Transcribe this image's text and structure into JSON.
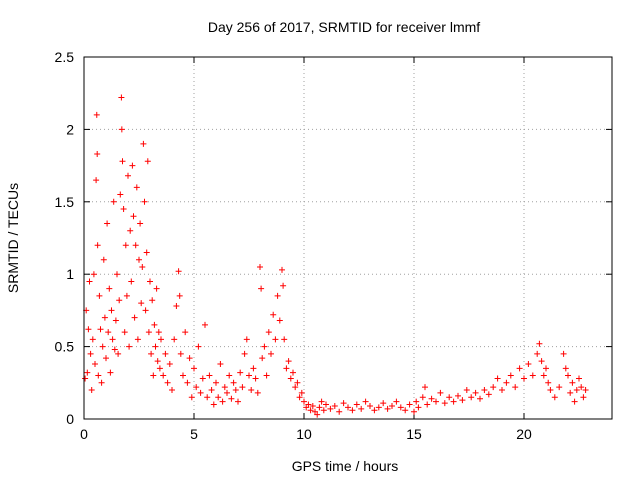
{
  "chart_data": {
    "type": "scatter",
    "title": "Day 256 of 2017, SRMTID for receiver lmmf",
    "xlabel": "GPS time / hours",
    "ylabel": "SRMTID / TECUs",
    "xlim": [
      0,
      24
    ],
    "ylim": [
      0,
      2.5
    ],
    "xticks": [
      0,
      5,
      10,
      15,
      20
    ],
    "xtick_labels": [
      "0",
      "5",
      "10",
      "15",
      "20"
    ],
    "yticks": [
      0,
      0.5,
      1,
      1.5,
      2,
      2.5
    ],
    "ytick_labels": [
      "0",
      "0.5",
      "1",
      "1.5",
      "2",
      "2.5"
    ],
    "grid": true,
    "marker": "+",
    "colors": {
      "series": "#ff0000",
      "grid": "#a0a0a0",
      "frame": "#000000"
    },
    "series": [
      {
        "name": "SRMTID",
        "points": [
          [
            0.05,
            0.28
          ],
          [
            0.1,
            0.75
          ],
          [
            0.15,
            0.32
          ],
          [
            0.2,
            0.62
          ],
          [
            0.25,
            0.95
          ],
          [
            0.3,
            0.45
          ],
          [
            0.35,
            0.2
          ],
          [
            0.4,
            0.55
          ],
          [
            0.45,
            1.0
          ],
          [
            0.5,
            0.38
          ],
          [
            0.55,
            1.65
          ],
          [
            0.58,
            2.1
          ],
          [
            0.6,
            1.83
          ],
          [
            0.62,
            1.2
          ],
          [
            0.65,
            0.3
          ],
          [
            0.7,
            0.85
          ],
          [
            0.75,
            0.62
          ],
          [
            0.8,
            0.25
          ],
          [
            0.85,
            0.5
          ],
          [
            0.9,
            1.1
          ],
          [
            0.95,
            0.7
          ],
          [
            1.0,
            0.42
          ],
          [
            1.05,
            1.35
          ],
          [
            1.1,
            0.6
          ],
          [
            1.15,
            0.9
          ],
          [
            1.2,
            0.32
          ],
          [
            1.25,
            0.75
          ],
          [
            1.3,
            0.55
          ],
          [
            1.35,
            1.5
          ],
          [
            1.4,
            0.48
          ],
          [
            1.45,
            0.68
          ],
          [
            1.5,
            1.0
          ],
          [
            1.55,
            0.45
          ],
          [
            1.6,
            0.82
          ],
          [
            1.65,
            1.55
          ],
          [
            1.7,
            2.22
          ],
          [
            1.72,
            2.0
          ],
          [
            1.75,
            1.78
          ],
          [
            1.8,
            1.45
          ],
          [
            1.85,
            0.6
          ],
          [
            1.9,
            1.2
          ],
          [
            1.95,
            0.85
          ],
          [
            2.0,
            1.68
          ],
          [
            2.05,
            0.5
          ],
          [
            2.1,
            1.3
          ],
          [
            2.15,
            0.95
          ],
          [
            2.2,
            1.75
          ],
          [
            2.25,
            1.4
          ],
          [
            2.3,
            0.7
          ],
          [
            2.35,
            1.2
          ],
          [
            2.4,
            1.6
          ],
          [
            2.45,
            0.55
          ],
          [
            2.5,
            1.1
          ],
          [
            2.55,
            1.35
          ],
          [
            2.6,
            0.8
          ],
          [
            2.65,
            1.05
          ],
          [
            2.7,
            1.9
          ],
          [
            2.75,
            1.5
          ],
          [
            2.8,
            0.75
          ],
          [
            2.85,
            1.15
          ],
          [
            2.9,
            1.78
          ],
          [
            2.95,
            0.6
          ],
          [
            3.0,
            0.95
          ],
          [
            3.05,
            0.45
          ],
          [
            3.1,
            0.82
          ],
          [
            3.15,
            0.3
          ],
          [
            3.2,
            0.65
          ],
          [
            3.25,
            0.5
          ],
          [
            3.3,
            0.9
          ],
          [
            3.35,
            0.4
          ],
          [
            3.4,
            0.6
          ],
          [
            3.45,
            0.35
          ],
          [
            3.5,
            0.55
          ],
          [
            3.6,
            0.3
          ],
          [
            3.7,
            0.45
          ],
          [
            3.8,
            0.25
          ],
          [
            3.9,
            0.38
          ],
          [
            4.0,
            0.2
          ],
          [
            4.1,
            0.55
          ],
          [
            4.2,
            0.78
          ],
          [
            4.3,
            1.02
          ],
          [
            4.35,
            0.85
          ],
          [
            4.4,
            0.45
          ],
          [
            4.5,
            0.3
          ],
          [
            4.6,
            0.6
          ],
          [
            4.7,
            0.25
          ],
          [
            4.8,
            0.42
          ],
          [
            4.9,
            0.15
          ],
          [
            5.0,
            0.35
          ],
          [
            5.1,
            0.22
          ],
          [
            5.2,
            0.5
          ],
          [
            5.3,
            0.18
          ],
          [
            5.4,
            0.28
          ],
          [
            5.5,
            0.65
          ],
          [
            5.6,
            0.15
          ],
          [
            5.7,
            0.3
          ],
          [
            5.8,
            0.2
          ],
          [
            5.9,
            0.1
          ],
          [
            6.0,
            0.25
          ],
          [
            6.1,
            0.15
          ],
          [
            6.2,
            0.38
          ],
          [
            6.3,
            0.12
          ],
          [
            6.4,
            0.22
          ],
          [
            6.5,
            0.18
          ],
          [
            6.6,
            0.3
          ],
          [
            6.7,
            0.14
          ],
          [
            6.8,
            0.25
          ],
          [
            6.9,
            0.2
          ],
          [
            7.0,
            0.12
          ],
          [
            7.1,
            0.32
          ],
          [
            7.2,
            0.22
          ],
          [
            7.3,
            0.45
          ],
          [
            7.4,
            0.55
          ],
          [
            7.5,
            0.3
          ],
          [
            7.6,
            0.2
          ],
          [
            7.7,
            0.35
          ],
          [
            7.8,
            0.28
          ],
          [
            7.9,
            0.18
          ],
          [
            8.0,
            1.05
          ],
          [
            8.05,
            0.9
          ],
          [
            8.1,
            0.42
          ],
          [
            8.2,
            0.5
          ],
          [
            8.3,
            0.3
          ],
          [
            8.4,
            0.6
          ],
          [
            8.5,
            0.45
          ],
          [
            8.6,
            0.72
          ],
          [
            8.7,
            0.55
          ],
          [
            8.8,
            0.85
          ],
          [
            8.9,
            0.68
          ],
          [
            9.0,
            1.03
          ],
          [
            9.05,
            0.92
          ],
          [
            9.1,
            0.55
          ],
          [
            9.2,
            0.35
          ],
          [
            9.3,
            0.4
          ],
          [
            9.4,
            0.28
          ],
          [
            9.5,
            0.32
          ],
          [
            9.6,
            0.22
          ],
          [
            9.7,
            0.25
          ],
          [
            9.8,
            0.15
          ],
          [
            9.9,
            0.18
          ],
          [
            10.0,
            0.12
          ],
          [
            10.1,
            0.08
          ],
          [
            10.2,
            0.1
          ],
          [
            10.3,
            0.06
          ],
          [
            10.4,
            0.09
          ],
          [
            10.5,
            0.05
          ],
          [
            10.6,
            0.03
          ],
          [
            10.7,
            0.08
          ],
          [
            10.8,
            0.12
          ],
          [
            10.9,
            0.06
          ],
          [
            11.0,
            0.1
          ],
          [
            11.2,
            0.07
          ],
          [
            11.4,
            0.09
          ],
          [
            11.6,
            0.05
          ],
          [
            11.8,
            0.11
          ],
          [
            12.0,
            0.08
          ],
          [
            12.2,
            0.06
          ],
          [
            12.4,
            0.1
          ],
          [
            12.6,
            0.07
          ],
          [
            12.8,
            0.12
          ],
          [
            13.0,
            0.09
          ],
          [
            13.2,
            0.06
          ],
          [
            13.4,
            0.08
          ],
          [
            13.6,
            0.11
          ],
          [
            13.8,
            0.07
          ],
          [
            14.0,
            0.09
          ],
          [
            14.2,
            0.12
          ],
          [
            14.4,
            0.08
          ],
          [
            14.6,
            0.06
          ],
          [
            14.8,
            0.1
          ],
          [
            15.0,
            0.05
          ],
          [
            15.1,
            0.12
          ],
          [
            15.2,
            0.08
          ],
          [
            15.4,
            0.15
          ],
          [
            15.5,
            0.22
          ],
          [
            15.6,
            0.1
          ],
          [
            15.8,
            0.14
          ],
          [
            16.0,
            0.12
          ],
          [
            16.2,
            0.18
          ],
          [
            16.4,
            0.11
          ],
          [
            16.6,
            0.15
          ],
          [
            16.8,
            0.12
          ],
          [
            17.0,
            0.16
          ],
          [
            17.2,
            0.13
          ],
          [
            17.4,
            0.2
          ],
          [
            17.6,
            0.15
          ],
          [
            17.8,
            0.18
          ],
          [
            18.0,
            0.14
          ],
          [
            18.2,
            0.2
          ],
          [
            18.4,
            0.17
          ],
          [
            18.6,
            0.22
          ],
          [
            18.8,
            0.28
          ],
          [
            19.0,
            0.2
          ],
          [
            19.2,
            0.25
          ],
          [
            19.4,
            0.3
          ],
          [
            19.6,
            0.22
          ],
          [
            19.8,
            0.35
          ],
          [
            20.0,
            0.28
          ],
          [
            20.2,
            0.38
          ],
          [
            20.4,
            0.3
          ],
          [
            20.6,
            0.45
          ],
          [
            20.7,
            0.52
          ],
          [
            20.8,
            0.4
          ],
          [
            20.9,
            0.3
          ],
          [
            21.0,
            0.35
          ],
          [
            21.1,
            0.25
          ],
          [
            21.2,
            0.2
          ],
          [
            21.4,
            0.15
          ],
          [
            21.6,
            0.22
          ],
          [
            21.8,
            0.45
          ],
          [
            21.9,
            0.35
          ],
          [
            22.0,
            0.3
          ],
          [
            22.1,
            0.18
          ],
          [
            22.2,
            0.25
          ],
          [
            22.3,
            0.12
          ],
          [
            22.4,
            0.2
          ],
          [
            22.5,
            0.28
          ],
          [
            22.6,
            0.22
          ],
          [
            22.7,
            0.15
          ],
          [
            22.8,
            0.2
          ]
        ]
      }
    ]
  }
}
